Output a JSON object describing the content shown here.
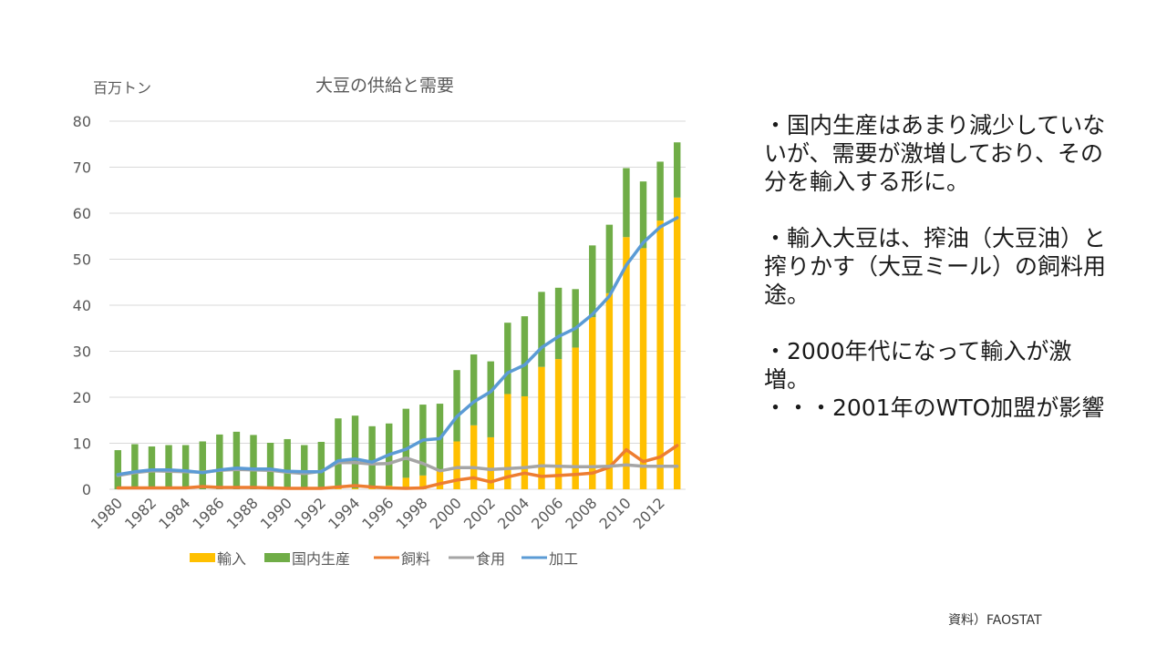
{
  "slide": {
    "notes": [
      "・国内生産はあまり減少していないが、需要が激増しており、その分を輸入する形に。",
      "・輸入大豆は、搾油（大豆油）と搾りかす（大豆ミール）の飼料用途。",
      "・2000年代になって輸入が激増。",
      "・・・2001年のWTO加盟が影響"
    ],
    "source": "資料）FAOSTAT"
  },
  "chart_data": {
    "type": "bar",
    "stacked": true,
    "title": "大豆の供給と需要",
    "ylabel": "百万トン",
    "xlabel": "",
    "ylim": [
      0,
      80
    ],
    "yticks": [
      0,
      10,
      20,
      30,
      40,
      50,
      60,
      70,
      80
    ],
    "grid": true,
    "legend_position": "bottom",
    "categories": [
      1980,
      1981,
      1982,
      1983,
      1984,
      1985,
      1986,
      1987,
      1988,
      1989,
      1990,
      1991,
      1992,
      1993,
      1994,
      1995,
      1996,
      1997,
      1998,
      1999,
      2000,
      2001,
      2002,
      2003,
      2004,
      2005,
      2006,
      2007,
      2008,
      2009,
      2010,
      2011,
      2012,
      2013
    ],
    "xtick_labels": [
      "1980",
      "1982",
      "1984",
      "1986",
      "1988",
      "1990",
      "1992",
      "1994",
      "1996",
      "1998",
      "2000",
      "2002",
      "2004",
      "2006",
      "2008",
      "2010",
      "2012"
    ],
    "bar_series": [
      {
        "name": "輸入",
        "color": "#FFC000",
        "values": [
          0,
          0,
          0,
          0,
          0,
          0,
          0,
          0,
          0,
          0,
          0,
          0,
          0,
          0.3,
          0.2,
          0.3,
          0.8,
          2.5,
          3.0,
          4.0,
          10.4,
          13.9,
          11.3,
          20.7,
          20.2,
          26.6,
          28.3,
          30.8,
          37.4,
          42.6,
          54.8,
          52.4,
          58.4,
          63.4
        ]
      },
      {
        "name": "国内生産",
        "color": "#70AD47",
        "values": [
          8.5,
          9.8,
          9.3,
          9.6,
          9.6,
          10.4,
          11.9,
          12.5,
          11.8,
          10.1,
          10.9,
          9.6,
          10.3,
          15.1,
          15.8,
          13.4,
          13.5,
          15.0,
          15.4,
          14.6,
          15.5,
          15.4,
          16.5,
          15.5,
          17.4,
          16.3,
          15.5,
          12.7,
          15.6,
          14.9,
          15.0,
          14.5,
          12.8,
          12.0
        ]
      }
    ],
    "line_series": [
      {
        "name": "飼料",
        "color": "#ED7D31",
        "values": [
          0.3,
          0.3,
          0.3,
          0.3,
          0.3,
          0.6,
          0.4,
          0.4,
          0.4,
          0.3,
          0.2,
          0.2,
          0.2,
          0.5,
          0.8,
          0.5,
          0.3,
          0.2,
          0.3,
          1.2,
          2.0,
          2.5,
          1.6,
          2.7,
          3.5,
          2.8,
          3.0,
          3.2,
          3.5,
          4.8,
          8.6,
          6.0,
          7.0,
          9.5
        ]
      },
      {
        "name": "食用",
        "color": "#A5A5A5",
        "values": [
          3.0,
          3.6,
          4.0,
          3.9,
          3.8,
          3.7,
          4.1,
          4.3,
          4.2,
          4.1,
          3.7,
          3.4,
          3.9,
          5.8,
          5.8,
          5.5,
          5.6,
          6.8,
          5.6,
          4.0,
          4.7,
          4.7,
          4.3,
          4.5,
          4.7,
          5.1,
          5.0,
          4.9,
          4.9,
          5.0,
          5.3,
          5.0,
          5.0,
          5.0
        ]
      },
      {
        "name": "加工",
        "color": "#5B9BD5",
        "values": [
          3.2,
          3.8,
          4.2,
          4.2,
          4.0,
          3.6,
          4.2,
          4.6,
          4.4,
          4.4,
          3.9,
          3.8,
          3.8,
          6.2,
          6.6,
          5.9,
          7.5,
          8.7,
          10.7,
          11.0,
          15.8,
          19.0,
          21.2,
          25.3,
          27.0,
          30.8,
          33.2,
          35.0,
          38.0,
          42.0,
          48.7,
          53.6,
          57.0,
          59.0
        ]
      }
    ]
  }
}
